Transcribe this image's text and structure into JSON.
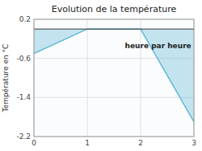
{
  "chart_data": {
    "type": "area",
    "title": "Evolution de la température",
    "ylabel": "Température en °C",
    "x": [
      0,
      1,
      2,
      3
    ],
    "values": [
      -0.5,
      0.0,
      0.0,
      -1.9
    ],
    "color": "#5bb8d4",
    "baseline": 0,
    "xlim": [
      0,
      3
    ],
    "xticks": [
      0,
      1,
      2,
      3
    ],
    "ylim": [
      -2.2,
      0.2
    ],
    "yticks": [
      0.2,
      -0.6,
      -1.4,
      -2.2
    ],
    "grid": true,
    "annotations": [
      {
        "text": "heure par heure",
        "x": 2.95,
        "y": -0.28
      }
    ]
  }
}
